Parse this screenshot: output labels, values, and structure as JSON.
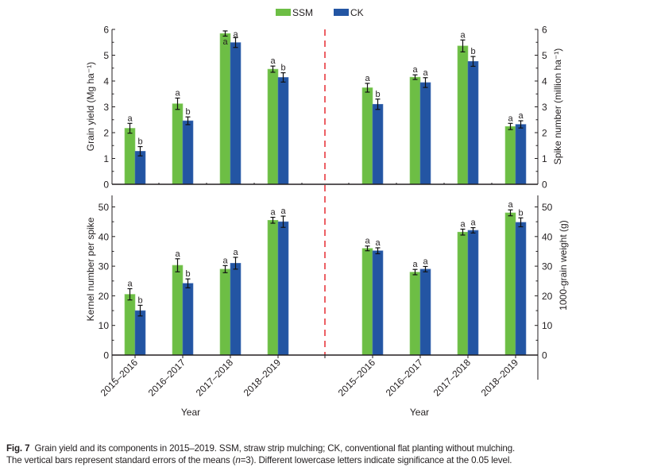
{
  "legend": {
    "items": [
      {
        "label": "SSM",
        "color": "#6dbe45"
      },
      {
        "label": "CK",
        "color": "#2355a3"
      }
    ]
  },
  "colors": {
    "ssm": "#6dbe45",
    "ck": "#2355a3",
    "divider": "#e8393f",
    "axis": "#231f20"
  },
  "xlabel": "Year",
  "chart_data": [
    {
      "type": "bar",
      "panel": "top-left",
      "title": "",
      "ylabel": "Grain yield (Mg ha⁻¹)",
      "xlabel": "",
      "axis_side": "left",
      "ylim": [
        0,
        6
      ],
      "yticks": [
        0,
        1,
        2,
        3,
        4,
        5,
        6
      ],
      "categories": [
        "2015–2016",
        "2016–2017",
        "2017–2018",
        "2018–2019"
      ],
      "series": [
        {
          "name": "SSM",
          "values": [
            2.17,
            3.12,
            5.84,
            4.46
          ],
          "errors": [
            0.19,
            0.22,
            0.1,
            0.12
          ],
          "letters": [
            "a",
            "a",
            "a",
            "a"
          ]
        },
        {
          "name": "CK",
          "values": [
            1.28,
            2.46,
            5.49,
            4.14
          ],
          "errors": [
            0.18,
            0.15,
            0.19,
            0.18
          ],
          "letters": [
            "b",
            "b",
            "a",
            "b"
          ]
        }
      ]
    },
    {
      "type": "bar",
      "panel": "top-right",
      "title": "",
      "ylabel": "Spike number (million ha⁻¹)",
      "xlabel": "",
      "axis_side": "right",
      "ylim": [
        0,
        6
      ],
      "yticks": [
        0,
        1,
        2,
        3,
        4,
        5,
        6
      ],
      "categories": [
        "2015–2016",
        "2016–2017",
        "2017–2018",
        "2018–2019"
      ],
      "series": [
        {
          "name": "SSM",
          "values": [
            3.74,
            4.15,
            5.36,
            2.24
          ],
          "errors": [
            0.17,
            0.09,
            0.23,
            0.12
          ],
          "letters": [
            "a",
            "a",
            "a",
            "a"
          ]
        },
        {
          "name": "CK",
          "values": [
            3.1,
            3.94,
            4.76,
            2.32
          ],
          "errors": [
            0.2,
            0.19,
            0.19,
            0.14
          ],
          "letters": [
            "b",
            "a",
            "b",
            "a"
          ]
        }
      ]
    },
    {
      "type": "bar",
      "panel": "bottom-left",
      "title": "",
      "ylabel": "Kernel number per spike",
      "xlabel": "Year",
      "axis_side": "left",
      "ylim": [
        0,
        54
      ],
      "yticks": [
        0,
        10,
        20,
        30,
        40,
        50
      ],
      "categories": [
        "2015–2016",
        "2016–2017",
        "2017–2018",
        "2018–2019"
      ],
      "series": [
        {
          "name": "SSM",
          "values": [
            20.5,
            30.3,
            29.0,
            45.5
          ],
          "errors": [
            1.9,
            2.2,
            1.2,
            1.0
          ],
          "letters": [
            "a",
            "a",
            "a",
            "a"
          ]
        },
        {
          "name": "CK",
          "values": [
            15.0,
            24.2,
            31.0,
            45.0
          ],
          "errors": [
            1.8,
            1.5,
            2.0,
            1.9
          ],
          "letters": [
            "b",
            "b",
            "a",
            "a"
          ]
        }
      ]
    },
    {
      "type": "bar",
      "panel": "bottom-right",
      "title": "",
      "ylabel": "1000-grain weight (g)",
      "xlabel": "Year",
      "axis_side": "right",
      "ylim": [
        0,
        54
      ],
      "yticks": [
        0,
        10,
        20,
        30,
        40,
        50
      ],
      "categories": [
        "2015–2016",
        "2016–2017",
        "2017–2018",
        "2018–2019"
      ],
      "series": [
        {
          "name": "SSM",
          "values": [
            36.0,
            28.0,
            41.5,
            48.0
          ],
          "errors": [
            0.8,
            0.9,
            1.0,
            1.0
          ],
          "letters": [
            "a",
            "a",
            "a",
            "a"
          ]
        },
        {
          "name": "CK",
          "values": [
            35.2,
            29.0,
            42.1,
            44.8
          ],
          "errors": [
            1.0,
            0.9,
            0.9,
            1.5
          ],
          "letters": [
            "a",
            "a",
            "a",
            "b"
          ]
        }
      ]
    }
  ],
  "caption": {
    "label": "Fig. 7",
    "line1": "Grain yield and its components in 2015–2019.  SSM, straw strip mulching; CK, conventional flat planting without mulching.",
    "line2_pre": "The vertical bars represent standard errors of the means (",
    "line2_italic": "n",
    "line2_post": "=3).  Different lowercase letters indicate significance at the 0.05 level."
  }
}
